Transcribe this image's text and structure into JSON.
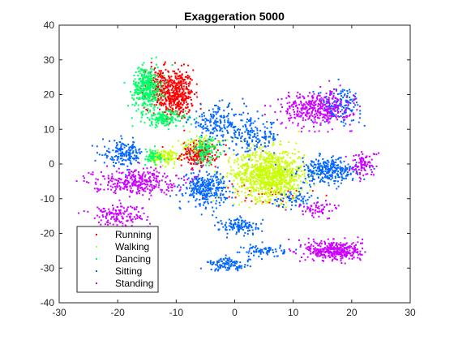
{
  "figure": {
    "background": "#ffffff"
  },
  "chart_data": {
    "type": "scatter",
    "title": "Exaggeration 5000",
    "xlabel": "",
    "ylabel": "",
    "xlim": [
      -30,
      30
    ],
    "ylim": [
      -40,
      40
    ],
    "xticks": [
      -30,
      -20,
      -10,
      0,
      10,
      20,
      30
    ],
    "yticks": [
      -40,
      -30,
      -20,
      -10,
      0,
      10,
      20,
      30,
      40
    ],
    "grid": false,
    "legend_placement": "bottom-left",
    "series": [
      {
        "name": "Running",
        "color": "#ff0000",
        "clusters": [
          {
            "center": [
              -10,
              20
            ],
            "spread": [
              2.5,
              6
            ],
            "count": 420
          },
          {
            "center": [
              -6,
              3
            ],
            "spread": [
              2.5,
              3
            ],
            "count": 220
          },
          {
            "center": [
              -13,
              22
            ],
            "spread": [
              2,
              5
            ],
            "count": 160
          },
          {
            "center": [
              5,
              -9
            ],
            "spread": [
              8,
              3
            ],
            "count": 40
          }
        ]
      },
      {
        "name": "Walking",
        "color": "#c8ff00",
        "clusters": [
          {
            "center": [
              6,
              -3
            ],
            "spread": [
              5,
              6
            ],
            "count": 950
          },
          {
            "center": [
              -12,
              2
            ],
            "spread": [
              2,
              2
            ],
            "count": 120
          },
          {
            "center": [
              -5,
              6
            ],
            "spread": [
              4,
              2
            ],
            "count": 60
          }
        ]
      },
      {
        "name": "Dancing",
        "color": "#00ff66",
        "clusters": [
          {
            "center": [
              -15,
              22
            ],
            "spread": [
              2,
              5
            ],
            "count": 380
          },
          {
            "center": [
              -12,
              13
            ],
            "spread": [
              3,
              2
            ],
            "count": 160
          },
          {
            "center": [
              -5,
              4
            ],
            "spread": [
              2,
              3
            ],
            "count": 120
          },
          {
            "center": [
              -14,
              2
            ],
            "spread": [
              2,
              2
            ],
            "count": 60
          }
        ]
      },
      {
        "name": "Sitting",
        "color": "#0066ff",
        "clusters": [
          {
            "center": [
              -3,
              12
            ],
            "spread": [
              4,
              4
            ],
            "count": 170
          },
          {
            "center": [
              3,
              8
            ],
            "spread": [
              4,
              4
            ],
            "count": 170
          },
          {
            "center": [
              -19,
              3
            ],
            "spread": [
              3,
              3
            ],
            "count": 170
          },
          {
            "center": [
              -5,
              -7
            ],
            "spread": [
              3,
              4
            ],
            "count": 300
          },
          {
            "center": [
              1,
              -18
            ],
            "spread": [
              3,
              2
            ],
            "count": 120
          },
          {
            "center": [
              5,
              -25
            ],
            "spread": [
              3,
              1.5
            ],
            "count": 80
          },
          {
            "center": [
              -1,
              -29
            ],
            "spread": [
              3,
              1.5
            ],
            "count": 110
          },
          {
            "center": [
              16,
              -2
            ],
            "spread": [
              4,
              3
            ],
            "count": 300
          },
          {
            "center": [
              18,
              17
            ],
            "spread": [
              3,
              4
            ],
            "count": 160
          },
          {
            "center": [
              10,
              -10
            ],
            "spread": [
              3,
              2
            ],
            "count": 60
          }
        ]
      },
      {
        "name": "Standing",
        "color": "#cc00ff",
        "clusters": [
          {
            "center": [
              14,
              16
            ],
            "spread": [
              5,
              4
            ],
            "count": 380
          },
          {
            "center": [
              17,
              -25
            ],
            "spread": [
              4,
              2.5
            ],
            "count": 360
          },
          {
            "center": [
              -17,
              -5
            ],
            "spread": [
              6,
              3
            ],
            "count": 320
          },
          {
            "center": [
              -20,
              -15
            ],
            "spread": [
              4,
              3
            ],
            "count": 150
          },
          {
            "center": [
              22,
              0
            ],
            "spread": [
              2,
              3
            ],
            "count": 90
          },
          {
            "center": [
              14,
              -13
            ],
            "spread": [
              3,
              2
            ],
            "count": 60
          }
        ]
      }
    ]
  }
}
